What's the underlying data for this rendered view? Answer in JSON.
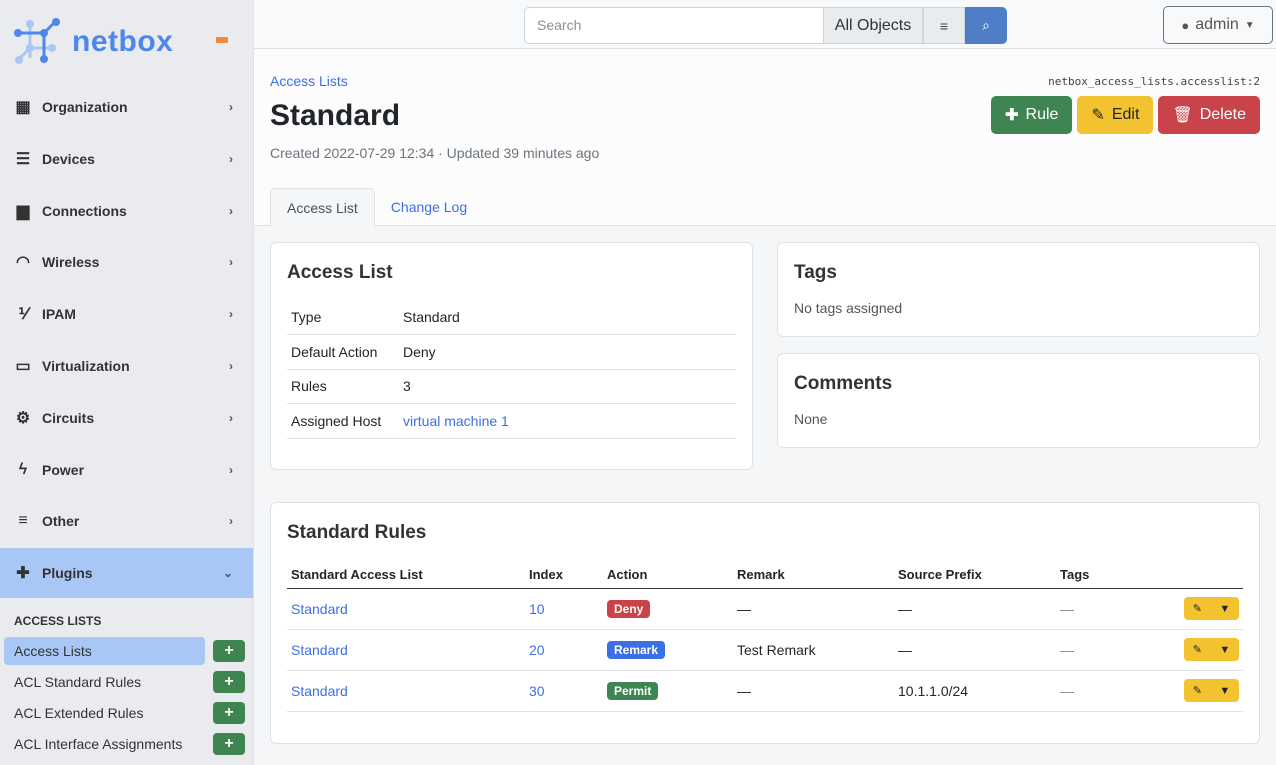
{
  "sidebar": {
    "logo_text": "netbox",
    "items": [
      {
        "label": "Organization",
        "icon": "building-icon",
        "glyph": "▦"
      },
      {
        "label": "Devices",
        "icon": "server-icon",
        "glyph": "☰"
      },
      {
        "label": "Connections",
        "icon": "ethernet-icon",
        "glyph": "▆"
      },
      {
        "label": "Wireless",
        "icon": "wifi-icon",
        "glyph": "◠"
      },
      {
        "label": "IPAM",
        "icon": "ip-icon",
        "glyph": "⅟"
      },
      {
        "label": "Virtualization",
        "icon": "monitor-icon",
        "glyph": "▭"
      },
      {
        "label": "Circuits",
        "icon": "circuit-icon",
        "glyph": "⚙"
      },
      {
        "label": "Power",
        "icon": "lightning-icon",
        "glyph": "ϟ"
      },
      {
        "label": "Other",
        "icon": "lines-icon",
        "glyph": "≡"
      },
      {
        "label": "Plugins",
        "icon": "puzzle-icon",
        "glyph": "✚"
      }
    ],
    "section_title": "ACCESS LISTS",
    "sub_items": [
      {
        "label": "Access Lists"
      },
      {
        "label": "ACL Standard Rules"
      },
      {
        "label": "ACL Extended Rules"
      },
      {
        "label": "ACL Interface Assignments"
      }
    ]
  },
  "topbar": {
    "search_placeholder": "Search",
    "object_filter": "All Objects",
    "user": "admin"
  },
  "header": {
    "breadcrumb": "Access Lists",
    "object_id": "netbox_access_lists.accesslist:2",
    "title": "Standard",
    "meta": "Created 2022-07-29 12:34 · Updated 39 minutes ago",
    "buttons": {
      "rule": "Rule",
      "edit": "Edit",
      "delete": "Delete"
    },
    "tabs": [
      "Access List",
      "Change Log"
    ]
  },
  "access_list": {
    "title": "Access List",
    "rows": [
      {
        "key": "Type",
        "value": "Standard"
      },
      {
        "key": "Default Action",
        "value": "Deny"
      },
      {
        "key": "Rules",
        "value": "3"
      },
      {
        "key": "Assigned Host",
        "value": "virtual machine 1"
      }
    ]
  },
  "tags": {
    "title": "Tags",
    "empty": "No tags assigned"
  },
  "comments": {
    "title": "Comments",
    "value": "None"
  },
  "rules": {
    "title": "Standard Rules",
    "columns": [
      "Standard Access List",
      "Index",
      "Action",
      "Remark",
      "Source Prefix",
      "Tags"
    ],
    "rows": [
      {
        "acl": "Standard",
        "index": "10",
        "action": "Deny",
        "action_color": "#c9444a",
        "remark": "—",
        "prefix": "—",
        "tags": "—"
      },
      {
        "acl": "Standard",
        "index": "20",
        "action": "Remark",
        "action_color": "#3b6fe6",
        "remark": "Test Remark",
        "prefix": "—",
        "tags": "—"
      },
      {
        "acl": "Standard",
        "index": "30",
        "action": "Permit",
        "action_color": "#3f8552",
        "remark": "—",
        "prefix": "10.1.1.0/24",
        "tags": "—"
      }
    ]
  },
  "colors": {
    "accent": "#3b6fe6",
    "success": "#3f8552",
    "warning": "#f3c22f",
    "danger": "#c9444a"
  }
}
